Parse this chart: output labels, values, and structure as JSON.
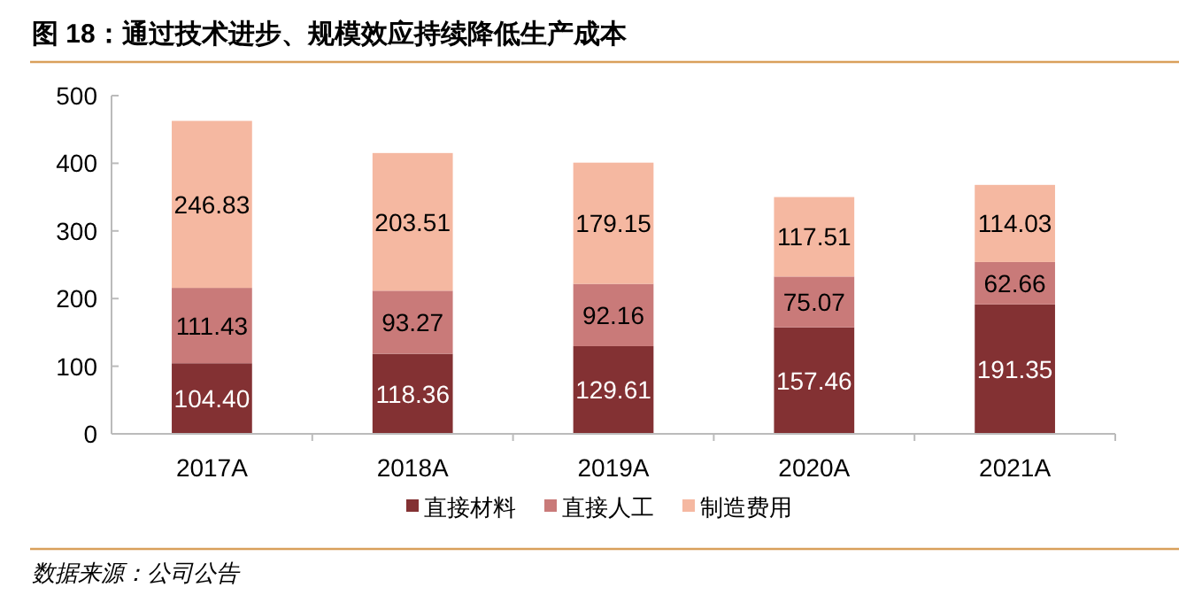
{
  "chart_data": {
    "type": "bar",
    "title": "图 18：通过技术进步、规模效应持续降低生产成本",
    "categories": [
      "2017A",
      "2018A",
      "2019A",
      "2020A",
      "2021A"
    ],
    "stacked": true,
    "series": [
      {
        "name": "直接材料",
        "color": "#833133",
        "values": [
          104.4,
          118.36,
          129.61,
          157.46,
          191.35
        ],
        "value_labels": [
          "104.40",
          "118.36",
          "129.61",
          "157.46",
          "191.35"
        ]
      },
      {
        "name": "直接人工",
        "color": "#c97a79",
        "values": [
          111.43,
          93.27,
          92.16,
          75.07,
          62.66
        ],
        "value_labels": [
          "111.43",
          "93.27",
          "92.16",
          "75.07",
          "62.66"
        ]
      },
      {
        "name": "制造费用",
        "color": "#f5b8a1",
        "values": [
          246.83,
          203.51,
          179.15,
          117.51,
          114.03
        ],
        "value_labels": [
          "246.83",
          "203.51",
          "179.15",
          "117.51",
          "114.03"
        ]
      }
    ],
    "ylim": [
      0,
      500
    ],
    "yticks": [
      0,
      100,
      200,
      300,
      400,
      500
    ],
    "legend": "bottom",
    "grid": false,
    "annotations": [
      "数据来源：公司公告"
    ]
  }
}
